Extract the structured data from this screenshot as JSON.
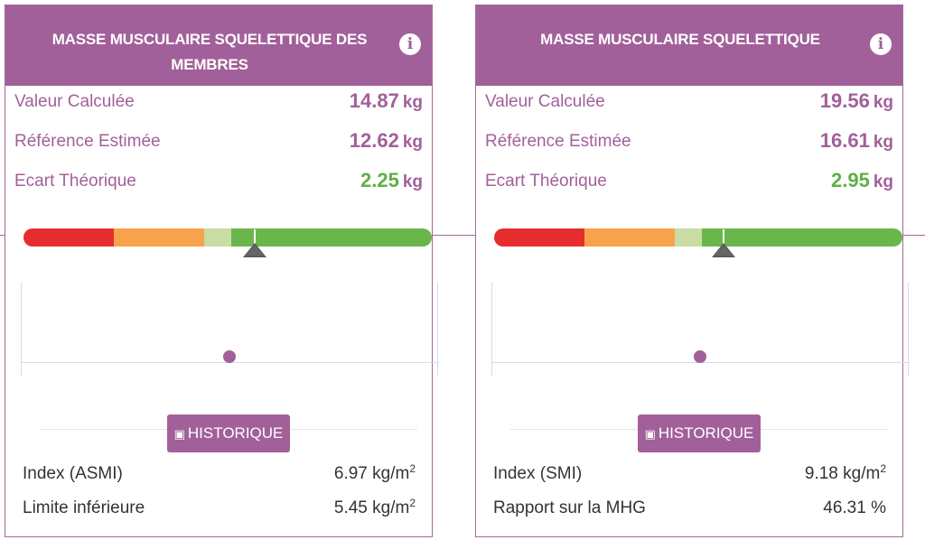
{
  "cards": [
    {
      "title": "MASSE MUSCULAIRE SQUELETTIQUE DES MEMBRES",
      "info_icon": "info-icon",
      "metrics": [
        {
          "label": "Valeur Calculée",
          "value": "14.87",
          "unit": "kg"
        },
        {
          "label": "Référence Estimée",
          "value": "12.62",
          "unit": "kg"
        },
        {
          "label": "Ecart Théorique",
          "value": "2.25",
          "unit": "kg",
          "color": "#5fb044"
        }
      ],
      "history_button": {
        "icon": "history-icon",
        "label": "HISTORIQUE"
      },
      "footer": [
        {
          "label": "Index (ASMI)",
          "value": "6.97 kg/m",
          "sup": "2"
        },
        {
          "label": "Limite inférieure",
          "value": "5.45 kg/m",
          "sup": "2"
        }
      ]
    },
    {
      "title": "MASSE MUSCULAIRE SQUELETTIQUE",
      "info_icon": "info-icon",
      "metrics": [
        {
          "label": "Valeur Calculée",
          "value": "19.56",
          "unit": "kg"
        },
        {
          "label": "Référence Estimée",
          "value": "16.61",
          "unit": "kg"
        },
        {
          "label": "Ecart Théorique",
          "value": "2.95",
          "unit": "kg",
          "color": "#5fb044"
        }
      ],
      "history_button": {
        "icon": "history-icon",
        "label": "HISTORIQUE"
      },
      "footer": [
        {
          "label": "Index (SMI)",
          "value": "9.18 kg/m",
          "sup": "2"
        },
        {
          "label": "Rapport sur la MHG",
          "value": "46.31 %",
          "sup": ""
        }
      ]
    }
  ],
  "colors": {
    "brand": "#a2609a",
    "positive": "#5fb044",
    "gauge_red": "#e62d2d",
    "gauge_orange": "#f9a24e",
    "gauge_lightgreen": "#c9dca3",
    "gauge_green": "#6ab64b"
  }
}
